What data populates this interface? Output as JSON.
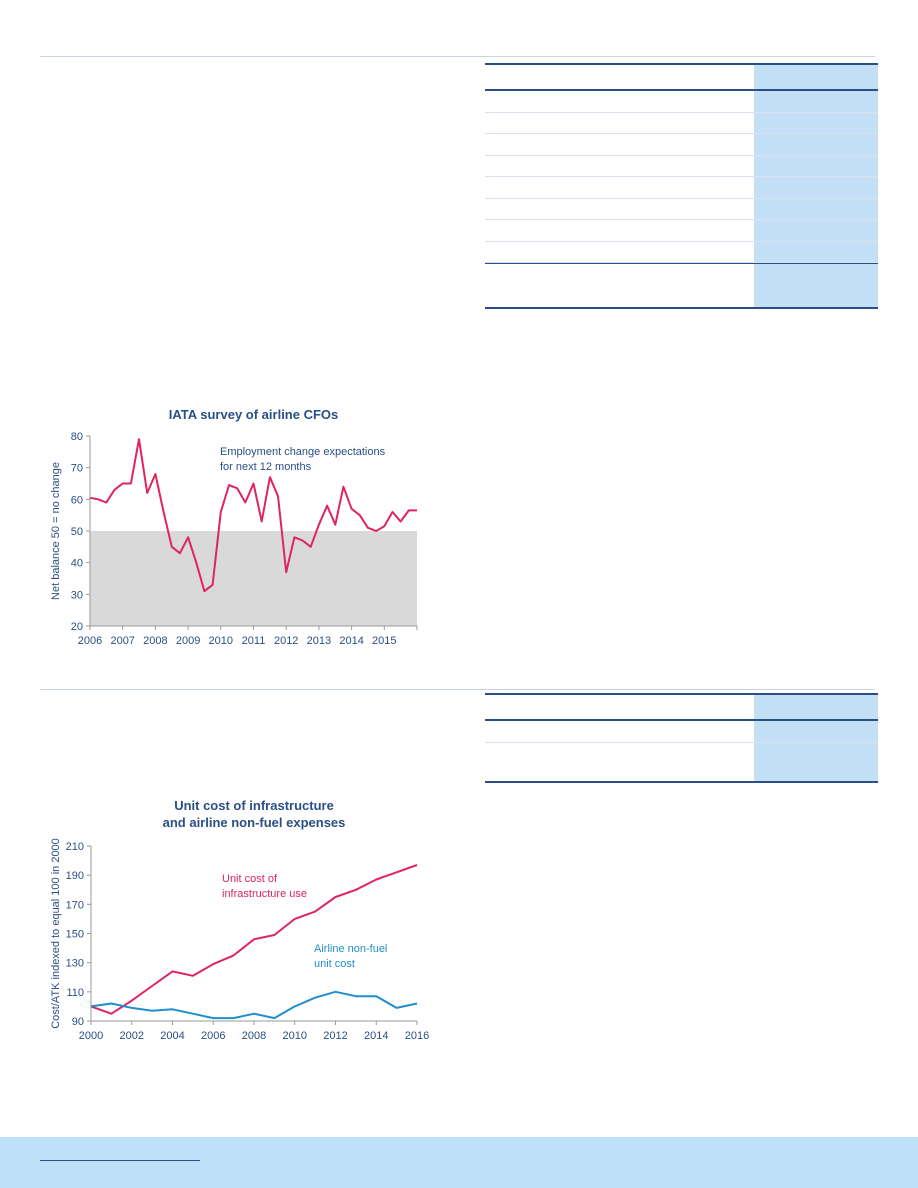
{
  "chart_data": [
    {
      "type": "line",
      "title": "IATA survey of airline CFOs",
      "ylabel": "Net balance 50 = no change",
      "xlabel": "",
      "ylim": [
        20,
        80
      ],
      "xlim": [
        2006,
        2016
      ],
      "yticks": [
        "20",
        "30",
        "40",
        "50",
        "60",
        "70",
        "80"
      ],
      "xticks": [
        "2006",
        "2007",
        "2008",
        "2009",
        "2010",
        "2011",
        "2012",
        "2013",
        "2014",
        "2015"
      ],
      "shaded_region": {
        "y_from": 20,
        "y_to": 50,
        "color": "#d9d9d9"
      },
      "annotation": [
        "Employment change expectations",
        "for next 12 months"
      ],
      "series": [
        {
          "color": "#e0245e",
          "x": [
            2006.0,
            2006.25,
            2006.5,
            2006.75,
            2007.0,
            2007.25,
            2007.5,
            2007.75,
            2008.0,
            2008.25,
            2008.5,
            2008.75,
            2009.0,
            2009.25,
            2009.5,
            2009.75,
            2010.0,
            2010.25,
            2010.5,
            2010.75,
            2011.0,
            2011.25,
            2011.5,
            2011.75,
            2012.0,
            2012.25,
            2012.5,
            2012.75,
            2013.0,
            2013.25,
            2013.5,
            2013.75,
            2014.0,
            2014.25,
            2014.5,
            2014.75,
            2015.0,
            2015.25,
            2015.5,
            2015.75,
            2016.0
          ],
          "values": [
            60.5,
            60,
            59,
            63,
            65,
            65,
            79,
            62,
            68,
            56,
            45,
            43,
            48,
            40,
            31,
            33,
            56,
            64.5,
            63.5,
            59,
            65,
            53,
            67,
            61,
            37,
            48,
            47,
            45,
            52,
            58,
            52,
            64,
            57,
            55,
            51,
            50,
            51.5,
            56,
            53,
            56.5,
            56.5
          ]
        }
      ]
    },
    {
      "type": "line",
      "title": "Unit cost of infrastructure and airline non-fuel expenses",
      "title_lines": [
        "Unit cost of infrastructure",
        "and airline non-fuel expenses"
      ],
      "ylabel": "Cost/ATK indexed to equal 100 in 2000",
      "xlabel": "",
      "ylim": [
        90,
        210
      ],
      "xlim": [
        2000,
        2016
      ],
      "yticks": [
        "90",
        "110",
        "130",
        "150",
        "170",
        "190",
        "210"
      ],
      "xticks": [
        "2000",
        "2002",
        "2004",
        "2006",
        "2008",
        "2010",
        "2012",
        "2014",
        "2016"
      ],
      "series": [
        {
          "name": "Unit cost of infrastructure use",
          "label_lines": [
            "Unit cost of",
            "infrastructure use"
          ],
          "color": "#e0245e",
          "x": [
            2000,
            2001,
            2002,
            2003,
            2004,
            2005,
            2006,
            2007,
            2008,
            2009,
            2010,
            2011,
            2012,
            2013,
            2014,
            2015,
            2016
          ],
          "values": [
            100,
            95,
            104,
            114,
            124,
            121,
            129,
            135,
            146,
            149,
            160,
            165,
            175,
            180,
            187,
            192,
            197
          ]
        },
        {
          "name": "Airline non-fuel unit cost",
          "label_lines": [
            "Airline non-fuel",
            "unit cost"
          ],
          "color": "#1f8fcb",
          "x": [
            2000,
            2001,
            2002,
            2003,
            2004,
            2005,
            2006,
            2007,
            2008,
            2009,
            2010,
            2011,
            2012,
            2013,
            2014,
            2015,
            2016
          ],
          "values": [
            100,
            102,
            99,
            97,
            98,
            95,
            92,
            92,
            95,
            92,
            100,
            106,
            110,
            107,
            107,
            99,
            102
          ]
        }
      ]
    }
  ],
  "colors": {
    "rule": "#c8d4e0",
    "table_border": "#2a4f86",
    "table_highlight": "#c4e0f7",
    "footer": "#bee0f8",
    "shade": "#d9d9d9",
    "axis": "#9a9a9a",
    "title": "#2a4f86",
    "tick_text": "#2a4f86"
  }
}
